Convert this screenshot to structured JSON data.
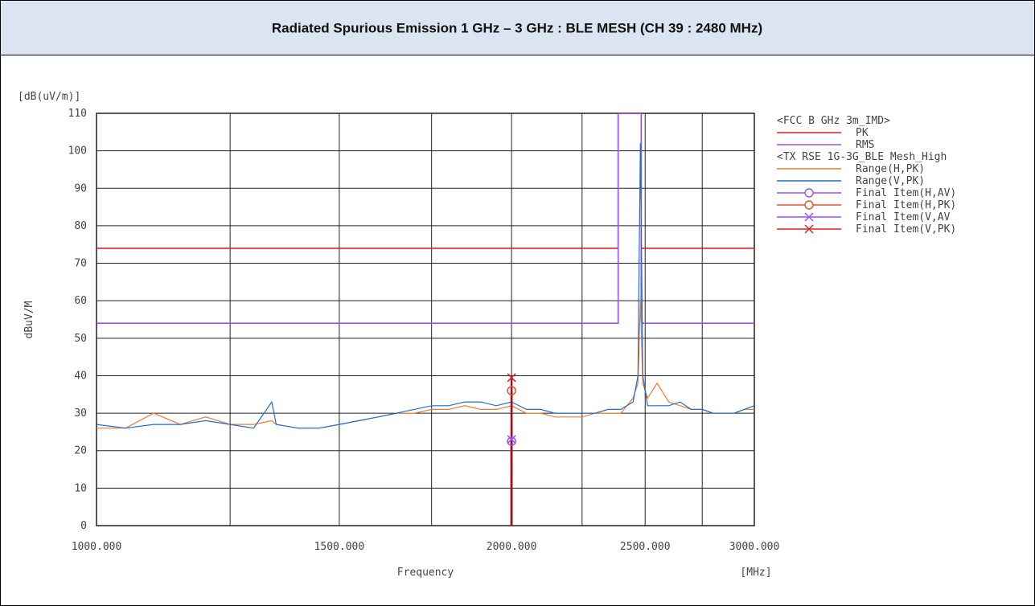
{
  "chart_data": {
    "type": "line",
    "title": "Radiated Spurious Emission 1 GHz – 3 GHz : BLE MESH (CH 39 : 2480 MHz)",
    "unit_label": "[dB(uV/m)]",
    "y_label": "dBuV/M",
    "x_label": "Frequency",
    "x_unit": "[MHz]",
    "log_x": true,
    "grid": true,
    "xlim": [
      1000,
      3000
    ],
    "ylim": [
      0,
      110
    ],
    "xticks": [
      {
        "value": 1000,
        "label": "1000.000"
      },
      {
        "value": 1250,
        "label": null
      },
      {
        "value": 1500,
        "label": "1500.000"
      },
      {
        "value": 1750,
        "label": null
      },
      {
        "value": 2000,
        "label": "2000.000"
      },
      {
        "value": 2250,
        "label": null
      },
      {
        "value": 2500,
        "label": "2500.000"
      },
      {
        "value": 2750,
        "label": null
      },
      {
        "value": 3000,
        "label": "3000.000"
      }
    ],
    "yticks": [
      0,
      10,
      20,
      30,
      40,
      50,
      60,
      70,
      80,
      90,
      100,
      110
    ],
    "legend_headers": [
      "<FCC B GHz 3m_IMD>",
      "<TX RSE 1G-3G_BLE Mesh_High"
    ],
    "series": [
      {
        "name": "PK",
        "color": "#e02020",
        "style": "line",
        "x": [
          1000,
          2390,
          2390,
          2483.5,
          2483.5,
          3000
        ],
        "values": [
          74,
          74,
          110,
          110,
          74,
          74
        ]
      },
      {
        "name": "RMS",
        "color": "#9a4ff0",
        "style": "line",
        "x": [
          1000,
          2390,
          2390,
          2483.5,
          2483.5,
          3000
        ],
        "values": [
          54,
          54,
          110,
          110,
          54,
          54
        ]
      },
      {
        "name": "Range(H,PK)",
        "color": "#f07a30",
        "style": "line",
        "x": [
          1000,
          1050,
          1100,
          1150,
          1200,
          1250,
          1300,
          1340,
          1350,
          1400,
          1450,
          1500,
          1550,
          1600,
          1650,
          1700,
          1750,
          1800,
          1850,
          1900,
          1950,
          2000,
          2050,
          2100,
          2150,
          2200,
          2250,
          2300,
          2350,
          2400,
          2450,
          2470,
          2480,
          2490,
          2510,
          2550,
          2600,
          2650,
          2700,
          2750,
          2800,
          2850,
          2900,
          2950,
          3000
        ],
        "values": [
          26,
          26,
          30,
          27,
          29,
          27,
          27,
          28,
          27,
          26,
          26,
          27,
          28,
          29,
          30,
          30,
          31,
          31,
          32,
          31,
          31,
          32,
          30,
          30,
          29,
          29,
          29,
          30,
          30,
          30,
          34,
          38,
          60,
          38,
          34,
          38,
          33,
          32,
          31,
          31,
          30,
          30,
          30,
          31,
          31
        ]
      },
      {
        "name": "Range(V,PK)",
        "color": "#1f6fd0",
        "style": "line",
        "x": [
          1000,
          1050,
          1100,
          1150,
          1200,
          1250,
          1300,
          1340,
          1350,
          1400,
          1450,
          1500,
          1550,
          1600,
          1650,
          1700,
          1750,
          1800,
          1850,
          1900,
          1950,
          2000,
          2050,
          2100,
          2150,
          2200,
          2250,
          2300,
          2350,
          2400,
          2450,
          2470,
          2480,
          2490,
          2510,
          2550,
          2600,
          2650,
          2700,
          2750,
          2800,
          2850,
          2900,
          2950,
          3000
        ],
        "values": [
          27,
          26,
          27,
          27,
          28,
          27,
          26,
          33,
          27,
          26,
          26,
          27,
          28,
          29,
          30,
          31,
          32,
          32,
          33,
          33,
          32,
          33,
          31,
          31,
          30,
          30,
          30,
          30,
          31,
          31,
          33,
          40,
          102,
          40,
          32,
          32,
          32,
          33,
          31,
          31,
          30,
          30,
          30,
          31,
          32
        ]
      },
      {
        "name": "Final Item(H,AV)",
        "color": "#9a4ff0",
        "style": "marker",
        "marker": "circle",
        "x": [
          2000
        ],
        "values": [
          22.5
        ]
      },
      {
        "name": "Final Item(H,PK)",
        "color": "#e05030",
        "style": "marker",
        "marker": "circle",
        "x": [
          2000
        ],
        "values": [
          36
        ]
      },
      {
        "name": "Final Item(V,AV",
        "color": "#9a4ff0",
        "style": "marker",
        "marker": "x",
        "x": [
          2000
        ],
        "values": [
          23
        ]
      },
      {
        "name": "Final Item(V,PK)",
        "color": "#e02020",
        "style": "marker",
        "marker": "x",
        "x": [
          2000
        ],
        "values": [
          39.5
        ]
      }
    ]
  }
}
